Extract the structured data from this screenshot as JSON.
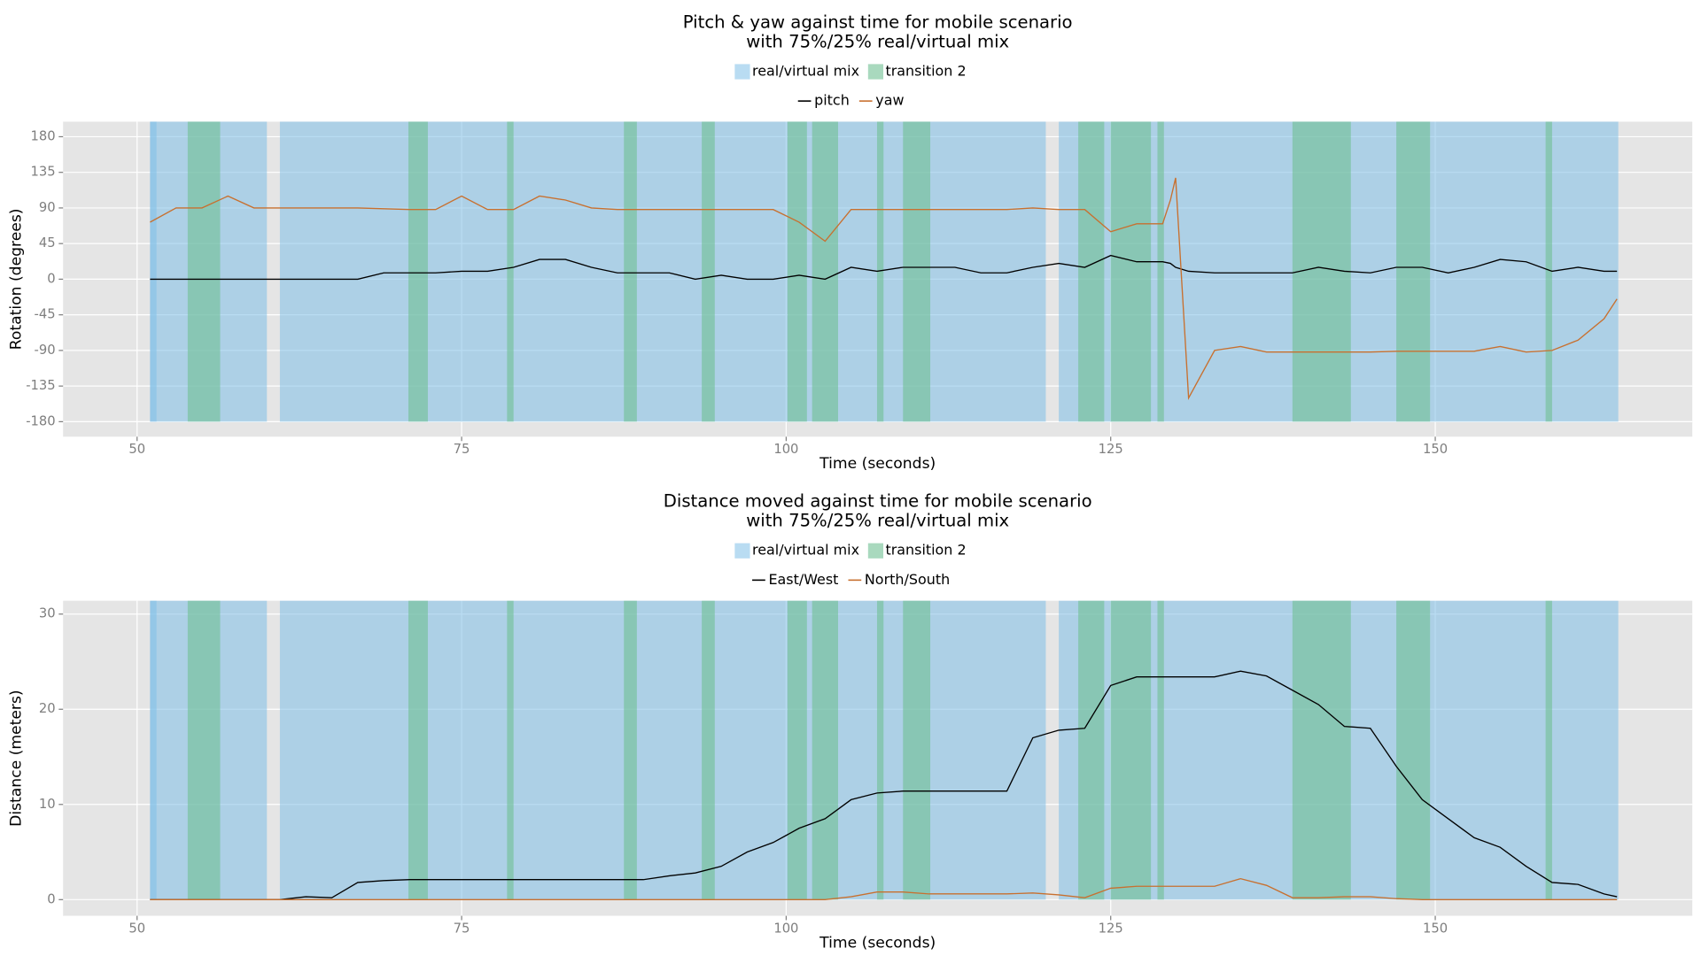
{
  "chart_data": [
    {
      "type": "line",
      "title": [
        "Pitch & yaw against time for mobile scenario",
        "with 75%/25% real/virtual mix"
      ],
      "x_label": "Time (seconds)",
      "y_label": "Rotation (degrees)",
      "xlim": [
        44.3,
        169.8
      ],
      "xticks": [
        50,
        75,
        100,
        125,
        150
      ],
      "ylim": [
        -199,
        199
      ],
      "yticks": [
        -180,
        -135,
        -90,
        -45,
        0,
        45,
        90,
        135,
        180
      ],
      "grid": true,
      "regions": [
        {
          "name": "real/virtual mix",
          "color": "#7fbfe8",
          "spans": [
            [
              51,
              51.5
            ],
            [
              51,
              60
            ],
            [
              61,
              120
            ],
            [
              121,
              164.1
            ]
          ]
        },
        {
          "name": "transition 2",
          "color": "#6fbf92",
          "spans": [
            [
              53.9,
              56.4
            ],
            [
              70.9,
              72.4
            ],
            [
              78.5,
              79
            ],
            [
              87.5,
              88.5
            ],
            [
              93.5,
              94.5
            ],
            [
              100.1,
              101.6
            ],
            [
              102,
              104
            ],
            [
              107,
              107.5
            ],
            [
              109,
              111.1
            ],
            [
              122.5,
              124.5
            ],
            [
              125,
              128.1
            ],
            [
              128.6,
              129.1
            ],
            [
              139,
              143.5
            ],
            [
              147,
              149.6
            ],
            [
              158.5,
              159
            ]
          ]
        }
      ],
      "x": [
        51,
        53,
        55,
        57,
        59,
        61,
        63,
        65,
        67,
        69,
        71,
        73,
        75,
        77,
        79,
        81,
        83,
        85,
        87,
        89,
        91,
        93,
        95,
        97,
        99,
        101,
        103,
        105,
        107,
        109,
        111,
        113,
        115,
        117,
        119,
        121,
        123,
        125,
        127,
        129,
        129.6,
        130,
        131,
        133,
        135,
        137,
        139,
        141,
        143,
        145,
        147,
        149,
        151,
        153,
        155,
        157,
        159,
        161,
        163,
        164
      ],
      "series": [
        {
          "name": "pitch",
          "color": "#000000",
          "values": [
            0,
            0,
            0,
            0,
            0,
            0,
            0,
            0,
            0,
            8,
            8,
            8,
            10,
            10,
            15,
            25,
            25,
            15,
            8,
            8,
            8,
            0,
            5,
            0,
            0,
            5,
            0,
            15,
            10,
            15,
            15,
            15,
            8,
            8,
            15,
            20,
            15,
            30,
            22,
            22,
            20,
            15,
            10,
            8,
            8,
            8,
            8,
            15,
            10,
            8,
            15,
            15,
            8,
            15,
            25,
            22,
            10,
            15,
            10,
            10
          ]
        },
        {
          "name": "yaw",
          "color": "#c8702f",
          "values": [
            72,
            90,
            90,
            105,
            90,
            90,
            90,
            90,
            90,
            89,
            88,
            88,
            105,
            88,
            88,
            105,
            100,
            90,
            88,
            88,
            88,
            88,
            88,
            88,
            88,
            72,
            48,
            88,
            88,
            88,
            88,
            88,
            88,
            88,
            90,
            88,
            88,
            60,
            70,
            70,
            100,
            128,
            -150,
            -90,
            -85,
            -92,
            -92,
            -92,
            -92,
            -92,
            -91,
            -91,
            -91,
            -91,
            -85,
            -92,
            -90,
            -77,
            -50,
            -25
          ]
        }
      ]
    },
    {
      "type": "line",
      "title": [
        "Distance moved against time for mobile scenario",
        "with 75%/25% real/virtual mix"
      ],
      "x_label": "Time (seconds)",
      "y_label": "Distance (meters)",
      "xlim": [
        44.3,
        169.8
      ],
      "xticks": [
        50,
        75,
        100,
        125,
        150
      ],
      "ylim": [
        -1.7,
        31.4
      ],
      "yticks": [
        0,
        10,
        20,
        30
      ],
      "grid": true,
      "regions": [
        {
          "name": "real/virtual mix",
          "color": "#7fbfe8",
          "spans": [
            [
              51,
              51.5
            ],
            [
              51,
              60
            ],
            [
              61,
              120
            ],
            [
              121,
              164.1
            ]
          ]
        },
        {
          "name": "transition 2",
          "color": "#6fbf92",
          "spans": [
            [
              53.9,
              56.4
            ],
            [
              70.9,
              72.4
            ],
            [
              78.5,
              79
            ],
            [
              87.5,
              88.5
            ],
            [
              93.5,
              94.5
            ],
            [
              100.1,
              101.6
            ],
            [
              102,
              104
            ],
            [
              107,
              107.5
            ],
            [
              109,
              111.1
            ],
            [
              122.5,
              124.5
            ],
            [
              125,
              128.1
            ],
            [
              128.6,
              129.1
            ],
            [
              139,
              143.5
            ],
            [
              147,
              149.6
            ],
            [
              158.5,
              159
            ]
          ]
        }
      ],
      "x": [
        51,
        53,
        55,
        57,
        59,
        61,
        63,
        65,
        67,
        69,
        71,
        73,
        75,
        77,
        79,
        81,
        83,
        85,
        87,
        89,
        91,
        93,
        95,
        97,
        99,
        101,
        103,
        105,
        107,
        109,
        111,
        113,
        115,
        117,
        119,
        121,
        123,
        125,
        127,
        129,
        129.6,
        130,
        131,
        133,
        135,
        137,
        139,
        141,
        143,
        145,
        147,
        149,
        151,
        153,
        155,
        157,
        159,
        161,
        163,
        164
      ],
      "series": [
        {
          "name": "East/West",
          "color": "#000000",
          "values": [
            0,
            0,
            0,
            0,
            0,
            0,
            0.3,
            0.2,
            1.8,
            2,
            2.1,
            2.1,
            2.1,
            2.1,
            2.1,
            2.1,
            2.1,
            2.1,
            2.1,
            2.1,
            2.5,
            2.8,
            3.5,
            5,
            6,
            7.5,
            8.5,
            10.5,
            11.2,
            11.4,
            11.4,
            11.4,
            11.4,
            11.4,
            17,
            17.8,
            18,
            22.5,
            23.4,
            23.4,
            23.4,
            23.4,
            23.4,
            23.4,
            24,
            23.5,
            22,
            20.5,
            18.2,
            18,
            14,
            10.5,
            8.5,
            6.5,
            5.5,
            3.5,
            1.8,
            1.6,
            0.6,
            0.3
          ]
        },
        {
          "name": "North/South",
          "color": "#c8702f",
          "values": [
            0,
            0,
            0,
            0,
            0,
            0,
            0,
            0,
            0,
            0,
            0,
            0,
            0,
            0,
            0,
            0,
            0,
            0,
            0,
            0,
            0,
            0,
            0,
            0,
            0,
            0,
            0,
            0.3,
            0.8,
            0.8,
            0.6,
            0.6,
            0.6,
            0.6,
            0.7,
            0.5,
            0.2,
            1.2,
            1.4,
            1.4,
            1.4,
            1.4,
            1.4,
            1.4,
            2.2,
            1.5,
            0.2,
            0.2,
            0.3,
            0.3,
            0.1,
            0,
            0,
            0,
            0,
            0,
            0,
            0,
            0,
            0
          ]
        }
      ]
    }
  ]
}
